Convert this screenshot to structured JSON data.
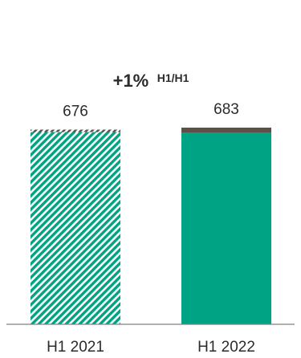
{
  "chart_data": {
    "type": "bar",
    "categories": [
      "H1 2021",
      "H1 2022"
    ],
    "values": [
      676,
      683
    ],
    "value_labels": [
      "676",
      "683"
    ],
    "growth_annotation": {
      "main": "+1%",
      "superscript": "H1/H1"
    },
    "ylim": [
      0,
      683
    ],
    "grid": false,
    "legend": "none",
    "colors": {
      "bar": "#00a383",
      "bar_cap": "#5d5045",
      "hatch_stripe": "#00a383",
      "hatch_background": "#ffffff",
      "axis": "#808080"
    },
    "styles": [
      "hatched",
      "solid"
    ]
  }
}
